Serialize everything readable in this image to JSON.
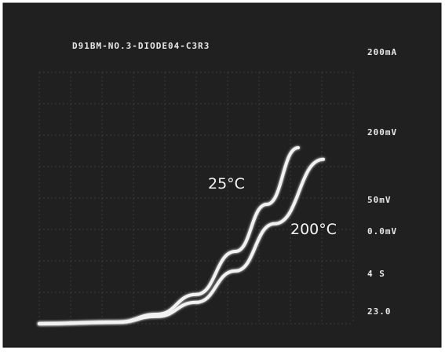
{
  "chart_data": {
    "type": "line",
    "title": "D91BM-NO.3-DIODE04-C3R3",
    "readouts": [
      "200mA",
      "200mV",
      "50mV",
      "0.0mV",
      "4 S",
      "23.0"
    ],
    "xlim": [
      0,
      10
    ],
    "ylim": [
      0,
      8
    ],
    "series": [
      {
        "name": "25°C",
        "color": "#f2f2f2",
        "x": [
          0,
          2.5,
          3.75,
          5,
          6.25,
          7.25,
          8.25
        ],
        "values": [
          0,
          0.05,
          0.3,
          0.93,
          2.3,
          3.8,
          5.6
        ]
      },
      {
        "name": "200°C",
        "color": "#f2f2f2",
        "x": [
          0,
          2.5,
          3.75,
          5,
          6.25,
          7.5,
          9.05
        ],
        "values": [
          0,
          0.05,
          0.23,
          0.68,
          1.68,
          3.18,
          5.23
        ]
      }
    ]
  }
}
